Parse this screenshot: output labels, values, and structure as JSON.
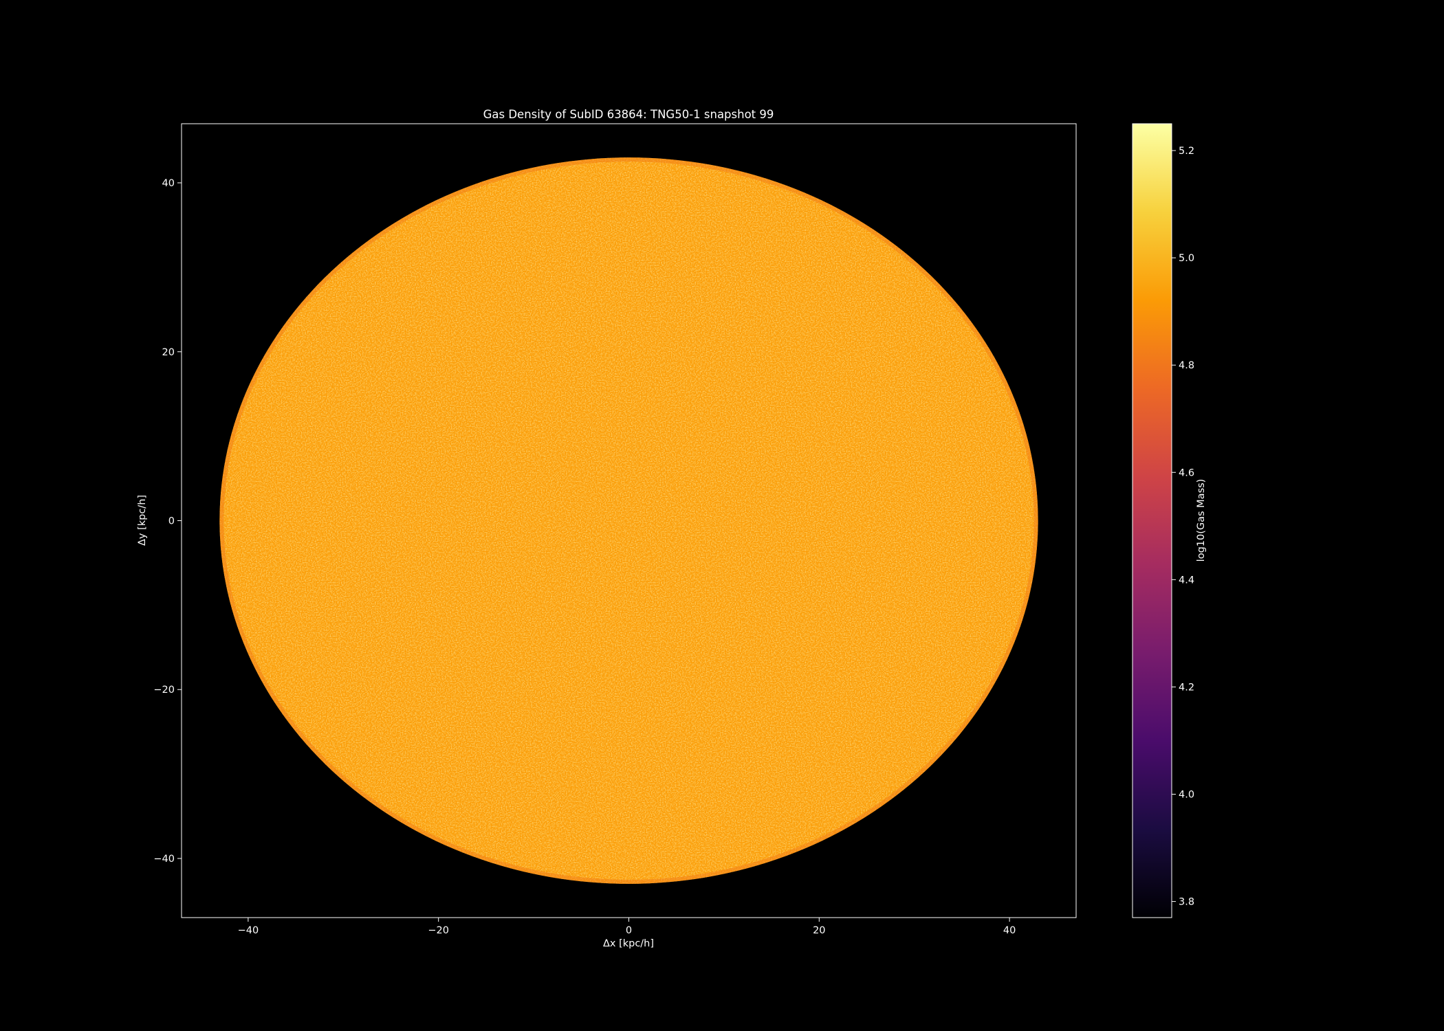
{
  "chart_data": {
    "type": "scatter",
    "title": "Gas Density of SubID 63864: TNG50-1 snapshot 99",
    "xlabel": "Δx [kpc/h]",
    "ylabel": "Δy [kpc/h]",
    "xlim": [
      -47,
      47
    ],
    "ylim": [
      -47,
      47
    ],
    "xticks": [
      -40,
      -20,
      0,
      20,
      40
    ],
    "yticks": [
      -40,
      -20,
      0,
      20,
      40
    ],
    "xtick_labels": [
      "−40",
      "−20",
      "0",
      "20",
      "40"
    ],
    "ytick_labels": [
      "−40",
      "−20",
      "0",
      "20",
      "40"
    ],
    "grid": false,
    "background": "#000000",
    "foreground": "#ffffff",
    "colormap": "inferno",
    "data_region": {
      "shape": "disk",
      "center": [
        0,
        0
      ],
      "radius": 43
    },
    "typical_value": 4.93,
    "colorbar": {
      "label": "log10(Gas Mass)",
      "range": [
        3.77,
        5.25
      ],
      "ticks": [
        3.8,
        4.0,
        4.2,
        4.4,
        4.6,
        4.8,
        5.0,
        5.2
      ],
      "tick_labels": [
        "3.8",
        "4.0",
        "4.2",
        "4.4",
        "4.6",
        "4.8",
        "5.0",
        "5.2"
      ],
      "stops": [
        "#000004",
        "#1b0c41",
        "#4a0c6b",
        "#781c6d",
        "#a52c60",
        "#cf4446",
        "#ed6925",
        "#fb9b06",
        "#f7d13d",
        "#fcffa4"
      ]
    }
  }
}
